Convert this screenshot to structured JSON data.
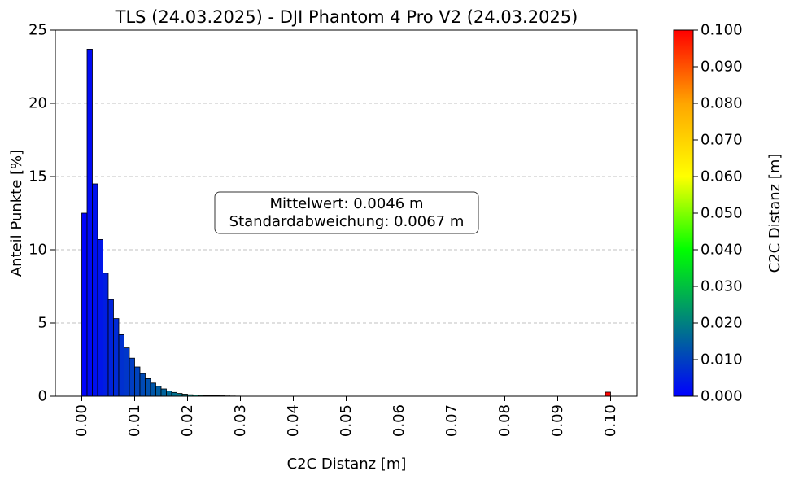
{
  "chart_data": {
    "type": "bar",
    "title": "TLS (24.03.2025) - DJI Phantom 4 Pro V2 (24.03.2025)",
    "xlabel": "C2C Distanz [m]",
    "ylabel": "Anteil Punkte [%]",
    "xlim": [
      -0.005,
      0.105
    ],
    "ylim": [
      0,
      25
    ],
    "xticks": [
      "0.00",
      "0.01",
      "0.02",
      "0.03",
      "0.04",
      "0.05",
      "0.06",
      "0.07",
      "0.08",
      "0.09",
      "0.10"
    ],
    "yticks": [
      "0",
      "5",
      "10",
      "15",
      "20",
      "25"
    ],
    "grid": "y-dashed",
    "bin_width": 0.001,
    "bin_start": 0.0,
    "values": [
      12.5,
      23.7,
      14.5,
      10.7,
      8.4,
      6.6,
      5.3,
      4.2,
      3.3,
      2.6,
      2.0,
      1.55,
      1.2,
      0.9,
      0.68,
      0.5,
      0.36,
      0.26,
      0.19,
      0.14,
      0.1,
      0.08,
      0.06,
      0.05,
      0.04,
      0.035,
      0.03,
      0.02,
      0.015,
      0.01
    ],
    "outlier_bin": {
      "x": 0.0995,
      "value": 0.28
    },
    "annotation": {
      "mean_label": "Mittelwert: 0.0046 m",
      "std_label": "Standardabweichung: 0.0067 m"
    },
    "colorbar": {
      "label": "C2C Distanz [m]",
      "range": [
        0.0,
        0.1
      ],
      "ticks": [
        "0.000",
        "0.010",
        "0.020",
        "0.030",
        "0.040",
        "0.050",
        "0.060",
        "0.070",
        "0.080",
        "0.090",
        "0.100"
      ],
      "colors": [
        "#0000ff",
        "#008080",
        "#00ff00",
        "#ffff00",
        "#ffa500",
        "#ff0000"
      ]
    }
  }
}
